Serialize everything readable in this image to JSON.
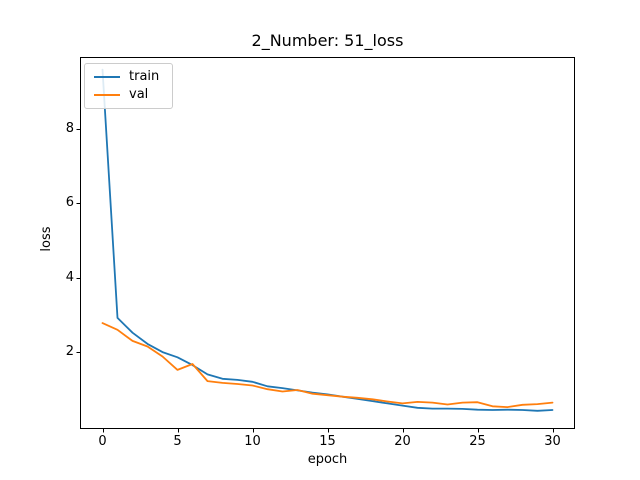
{
  "figure": {
    "background": "#ffffff",
    "text_color": "#000000"
  },
  "chart_data": {
    "type": "line",
    "title": "2_Number: 51_loss",
    "xlabel": "epoch",
    "ylabel": "loss",
    "grid": false,
    "xlim": [
      -1.5,
      31.5
    ],
    "ylim": [
      -0.07,
      9.94
    ],
    "x_ticks": [
      0,
      5,
      10,
      15,
      20,
      25,
      30
    ],
    "y_ticks": [
      2,
      4,
      6,
      8
    ],
    "legend": {
      "position": "upper left"
    },
    "x": [
      0,
      1,
      2,
      3,
      4,
      5,
      6,
      7,
      8,
      9,
      10,
      11,
      12,
      13,
      14,
      15,
      16,
      17,
      18,
      19,
      20,
      21,
      22,
      23,
      24,
      25,
      26,
      27,
      28,
      29,
      30
    ],
    "series": [
      {
        "name": "train",
        "color": "#1f77b4",
        "values": [
          9.6,
          2.92,
          2.52,
          2.22,
          2.0,
          1.86,
          1.65,
          1.4,
          1.28,
          1.25,
          1.2,
          1.08,
          1.03,
          0.97,
          0.91,
          0.86,
          0.8,
          0.74,
          0.68,
          0.62,
          0.56,
          0.5,
          0.48,
          0.48,
          0.47,
          0.45,
          0.44,
          0.45,
          0.44,
          0.42,
          0.44
        ]
      },
      {
        "name": "val",
        "color": "#ff7f0e",
        "values": [
          2.78,
          2.6,
          2.3,
          2.15,
          1.88,
          1.52,
          1.68,
          1.22,
          1.17,
          1.14,
          1.1,
          1.0,
          0.94,
          0.98,
          0.88,
          0.84,
          0.8,
          0.77,
          0.73,
          0.67,
          0.62,
          0.66,
          0.64,
          0.59,
          0.64,
          0.65,
          0.54,
          0.52,
          0.58,
          0.6,
          0.64
        ]
      }
    ]
  }
}
